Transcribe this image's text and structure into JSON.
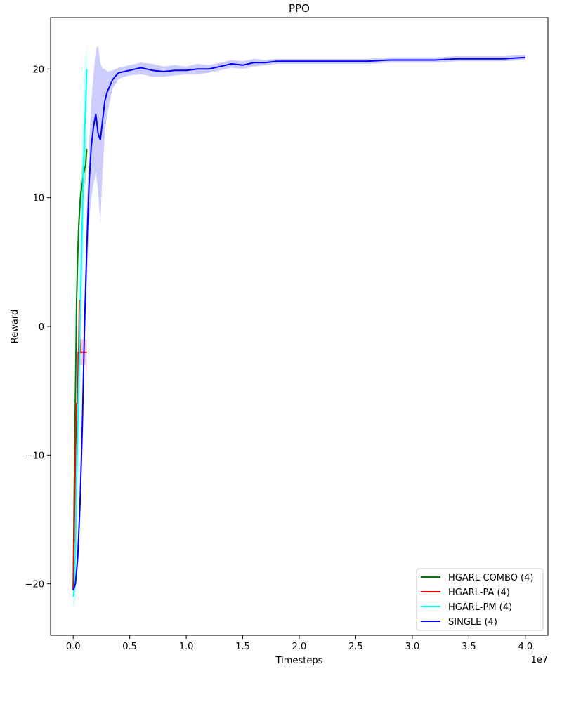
{
  "chart_data": {
    "type": "line",
    "title": "PPO",
    "xlabel": "Timesteps",
    "ylabel": "Reward",
    "x_offset_label": "1e7",
    "xlim": [
      -0.2,
      4.2
    ],
    "ylim": [
      -24,
      24
    ],
    "x_unit": 10000000,
    "xticks": [
      0.0,
      0.5,
      1.0,
      1.5,
      2.0,
      2.5,
      3.0,
      3.5,
      4.0
    ],
    "xtick_labels": [
      "0.0",
      "0.5",
      "1.0",
      "1.5",
      "2.0",
      "2.5",
      "3.0",
      "3.5",
      "4.0"
    ],
    "yticks": [
      -20,
      -10,
      0,
      10,
      20
    ],
    "ytick_labels": [
      "−20",
      "−10",
      "0",
      "10",
      "20"
    ],
    "grid": false,
    "legend_position": "bottom-right",
    "series": [
      {
        "name": "HGARL-COMBO (4)",
        "color": "#008000",
        "x": [
          0.0,
          0.01,
          0.02,
          0.03,
          0.04,
          0.05,
          0.06,
          0.07,
          0.08,
          0.09,
          0.1,
          0.11,
          0.12
        ],
        "y": [
          -20.5,
          -12,
          -5,
          2,
          5.5,
          8,
          9.5,
          10.5,
          11,
          11.8,
          12.2,
          12.5,
          13.8
        ],
        "y_low": [
          -21,
          -14,
          -8,
          -1,
          3,
          6,
          8,
          9,
          9.5,
          10.5,
          11,
          11.2,
          12.5
        ],
        "y_high": [
          -20,
          -10,
          -2,
          4,
          7,
          9.5,
          11,
          12,
          12.5,
          13.5,
          14.2,
          14.8,
          15
        ]
      },
      {
        "name": "HGARL-PA (4)",
        "color": "#ff0000",
        "x": [
          0.0,
          0.02,
          0.03,
          0.04,
          0.045,
          0.05,
          0.055,
          0.06,
          0.065,
          0.07,
          0.08,
          0.09,
          0.1,
          0.11,
          0.12
        ],
        "y": [
          -20.5,
          -10,
          -6,
          -6,
          -2,
          -2,
          2,
          -2,
          -2,
          -2,
          -2,
          -2,
          -2,
          -2,
          -2
        ],
        "y_low": [
          -21,
          -11,
          -7,
          -7,
          -3,
          -3,
          0,
          -3,
          -3,
          -3,
          -3,
          -3,
          -3,
          -3,
          -4
        ],
        "y_high": [
          -20,
          -9,
          -5,
          -5,
          -1,
          -1,
          2.5,
          -1,
          -1,
          -1,
          -1,
          -1,
          -1,
          -1,
          -1
        ]
      },
      {
        "name": "HGARL-PM (4)",
        "color": "#00ffff",
        "x": [
          0.0,
          0.01,
          0.02,
          0.03,
          0.04,
          0.05,
          0.06,
          0.07,
          0.08,
          0.09,
          0.1,
          0.11,
          0.12
        ],
        "y": [
          -21,
          -20.5,
          -17,
          -12,
          -8,
          -4,
          0,
          4,
          8,
          12,
          15,
          17,
          20
        ],
        "y_low": [
          -21.5,
          -22,
          -21,
          -18,
          -14,
          -10,
          -6,
          -2,
          2,
          6,
          9,
          12,
          15
        ],
        "y_high": [
          -20.5,
          -19,
          -13,
          -6,
          -2,
          2,
          6,
          10,
          14,
          18,
          20,
          21,
          22
        ]
      },
      {
        "name": "SINGLE (4)",
        "color": "#0000ff",
        "x": [
          0.0,
          0.02,
          0.04,
          0.06,
          0.08,
          0.1,
          0.12,
          0.14,
          0.16,
          0.18,
          0.2,
          0.22,
          0.24,
          0.26,
          0.28,
          0.3,
          0.35,
          0.4,
          0.45,
          0.5,
          0.6,
          0.7,
          0.8,
          0.9,
          1.0,
          1.1,
          1.2,
          1.3,
          1.4,
          1.5,
          1.6,
          1.7,
          1.8,
          1.9,
          2.0,
          2.2,
          2.4,
          2.6,
          2.8,
          3.0,
          3.2,
          3.4,
          3.6,
          3.8,
          4.0
        ],
        "y": [
          -20.5,
          -20,
          -18,
          -14,
          -8,
          0,
          6,
          11,
          14,
          15.5,
          16.5,
          15,
          14.5,
          16,
          17.5,
          18.2,
          19.2,
          19.7,
          19.8,
          19.9,
          20.1,
          19.9,
          19.8,
          19.9,
          19.9,
          20.0,
          20.0,
          20.2,
          20.4,
          20.3,
          20.5,
          20.5,
          20.6,
          20.6,
          20.6,
          20.6,
          20.6,
          20.6,
          20.7,
          20.7,
          20.7,
          20.8,
          20.8,
          20.8,
          20.9
        ],
        "y_low": [
          -20.7,
          -20.4,
          -18.8,
          -15,
          -9.5,
          -2,
          3,
          8,
          10,
          11,
          12,
          10.5,
          8,
          12,
          15,
          16.5,
          18.5,
          19.2,
          19.4,
          19.5,
          19.6,
          19.4,
          19.4,
          19.5,
          19.6,
          19.6,
          19.7,
          19.9,
          20.1,
          20.0,
          20.2,
          20.3,
          20.4,
          20.4,
          20.4,
          20.4,
          20.4,
          20.4,
          20.5,
          20.5,
          20.5,
          20.6,
          20.6,
          20.6,
          20.7
        ],
        "y_high": [
          -20.3,
          -19.6,
          -17.2,
          -13,
          -6.5,
          2,
          9,
          14,
          17.5,
          19.5,
          21.5,
          21.8,
          20.5,
          20,
          20,
          19.8,
          19.9,
          20.1,
          20.2,
          20.3,
          20.5,
          20.4,
          20.2,
          20.3,
          20.2,
          20.4,
          20.3,
          20.5,
          20.7,
          20.6,
          20.8,
          20.7,
          20.8,
          20.8,
          20.8,
          20.8,
          20.8,
          20.8,
          20.9,
          20.9,
          20.9,
          21.0,
          21.0,
          21.0,
          21.1
        ]
      }
    ]
  }
}
